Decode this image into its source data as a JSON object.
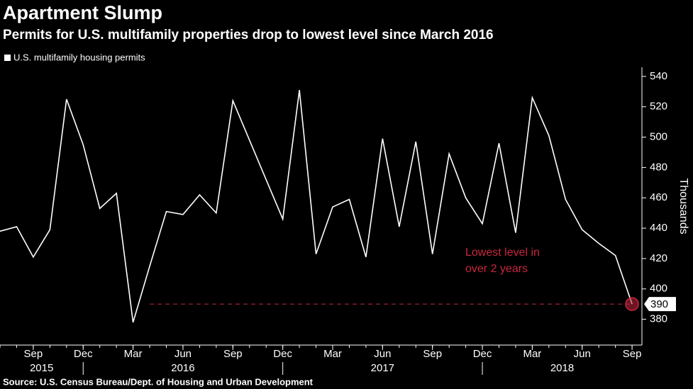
{
  "chart_data": {
    "type": "line",
    "title": "Apartment Slump",
    "subtitle": "Permits for U.S. multifamily properties drop to lowest level since March 2016",
    "source": "Source: U.S. Census Bureau/Dept. of Housing and Urban Development",
    "y_axis_label": "Thousands",
    "annotation": [
      "Lowest level in",
      "over 2 years"
    ],
    "x": [
      "2015-07",
      "2015-08",
      "2015-09",
      "2015-10",
      "2015-11",
      "2015-12",
      "2016-01",
      "2016-02",
      "2016-03",
      "2016-04",
      "2016-05",
      "2016-06",
      "2016-07",
      "2016-08",
      "2016-09",
      "2016-10",
      "2016-11",
      "2016-12",
      "2017-01",
      "2017-02",
      "2017-03",
      "2017-04",
      "2017-05",
      "2017-06",
      "2017-07",
      "2017-08",
      "2017-09",
      "2017-10",
      "2017-11",
      "2017-12",
      "2018-01",
      "2018-02",
      "2018-03",
      "2018-04",
      "2018-05",
      "2018-06",
      "2018-07",
      "2018-08",
      "2018-09"
    ],
    "series": [
      {
        "name": "U.S. multifamily housing permits",
        "color": "#ffffff",
        "values": [
          438,
          441,
          421,
          439,
          525,
          495,
          453,
          463,
          378,
          415,
          451,
          449,
          462,
          450,
          524,
          498,
          472,
          446,
          531,
          423,
          454,
          459,
          421,
          499,
          441,
          497,
          423,
          489,
          460,
          443,
          496,
          437,
          526,
          501,
          459,
          439,
          430,
          422,
          390
        ]
      }
    ],
    "highlight_color": "#c8273e",
    "xticks": [
      {
        "value": "2015-09",
        "label": "Sep"
      },
      {
        "value": "2015-12",
        "label": "Dec"
      },
      {
        "value": "2016-03",
        "label": "Mar"
      },
      {
        "value": "2016-06",
        "label": "Jun"
      },
      {
        "value": "2016-09",
        "label": "Sep"
      },
      {
        "value": "2016-12",
        "label": "Dec"
      },
      {
        "value": "2017-03",
        "label": "Mar"
      },
      {
        "value": "2017-06",
        "label": "Jun"
      },
      {
        "value": "2017-09",
        "label": "Sep"
      },
      {
        "value": "2017-12",
        "label": "Dec"
      },
      {
        "value": "2018-03",
        "label": "Mar"
      },
      {
        "value": "2018-06",
        "label": "Jun"
      },
      {
        "value": "2018-09",
        "label": "Sep"
      }
    ],
    "years": [
      "2015",
      "2016",
      "2017",
      "2018"
    ],
    "ylim": [
      363,
      546
    ],
    "yticks": [
      380,
      400,
      420,
      440,
      460,
      480,
      500,
      520,
      540
    ],
    "grid": false
  }
}
